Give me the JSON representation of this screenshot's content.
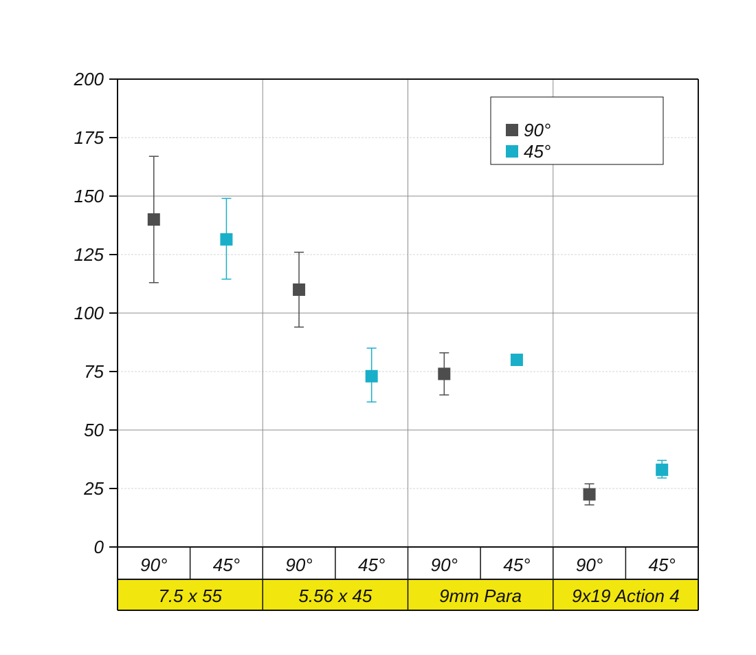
{
  "chart_data": {
    "type": "scatter",
    "ylim": [
      0,
      200
    ],
    "y_ticks": [
      0,
      25,
      50,
      75,
      100,
      125,
      150,
      175,
      200
    ],
    "y_tick_labels": [
      "0",
      "25",
      "50",
      "75",
      "100",
      "125",
      "150",
      "175",
      "200"
    ],
    "groups": [
      "7.5 x 55",
      "5.56 x 45",
      "9mm Para",
      "9x19 Action 4"
    ],
    "subcategories": [
      "90°",
      "45°"
    ],
    "series": [
      {
        "name": "90°",
        "color": "#4d4d4d",
        "points": [
          {
            "group": "7.5 x 55",
            "value": 140,
            "err_low": 113,
            "err_high": 167
          },
          {
            "group": "5.56 x 45",
            "value": 110,
            "err_low": 94,
            "err_high": 126
          },
          {
            "group": "9mm Para",
            "value": 74,
            "err_low": 65,
            "err_high": 83
          },
          {
            "group": "9x19 Action 4",
            "value": 22.5,
            "err_low": 18,
            "err_high": 27
          }
        ]
      },
      {
        "name": "45°",
        "color": "#1aafc8",
        "points": [
          {
            "group": "7.5 x 55",
            "value": 131.5,
            "err_low": 114.5,
            "err_high": 149
          },
          {
            "group": "5.56 x 45",
            "value": 73,
            "err_low": 62,
            "err_high": 85
          },
          {
            "group": "9mm Para",
            "value": 80,
            "err_low": 80,
            "err_high": 80
          },
          {
            "group": "9x19 Action 4",
            "value": 33,
            "err_low": 29.5,
            "err_high": 37
          }
        ]
      }
    ],
    "grid": true,
    "legend_position": "top-right",
    "category_band_color": "#f2e60f"
  }
}
